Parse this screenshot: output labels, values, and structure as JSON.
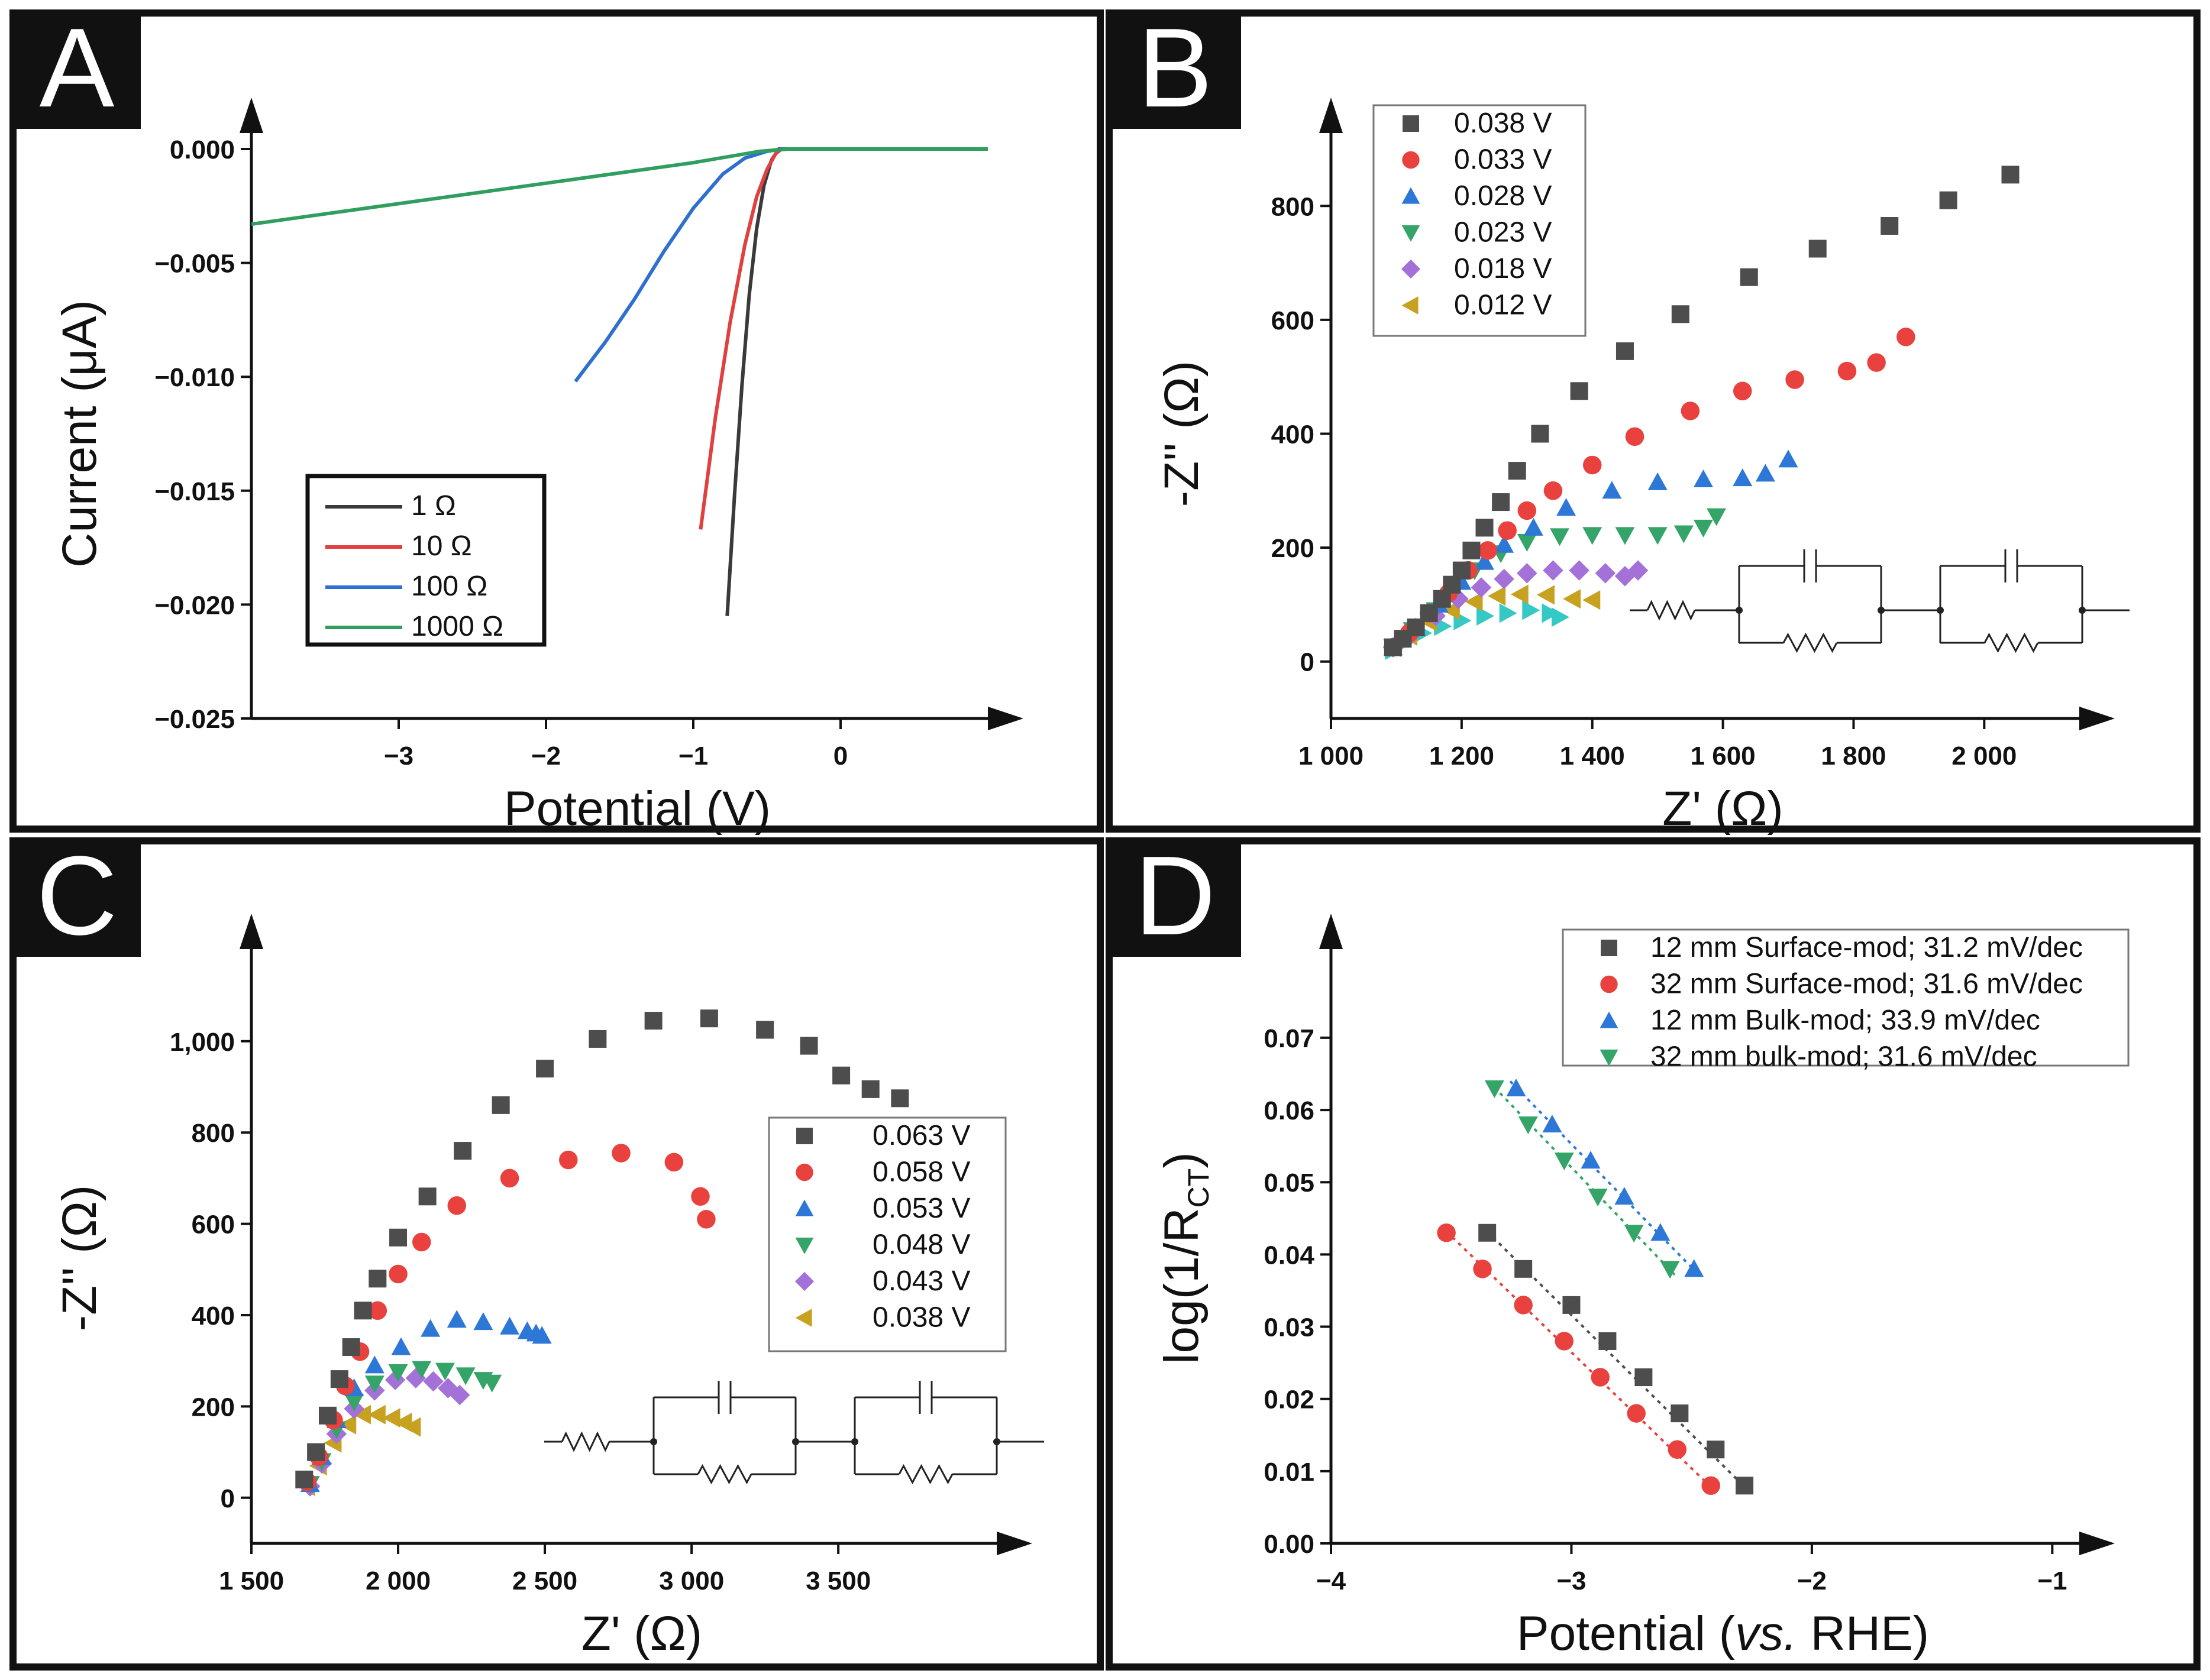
{
  "panels": {
    "A": {
      "letter": "A",
      "chart_data": {
        "type": "line",
        "title": "",
        "xlabel": "Potential (V)",
        "ylabel": "Current (μA)",
        "xlim": [
          -4.0,
          1.0
        ],
        "ylim": [
          -0.025,
          0.0
        ],
        "xticks": [
          -3,
          -2,
          -1,
          0
        ],
        "xtick_labels": [
          "−3",
          "−2",
          "−1",
          "0"
        ],
        "yticks": [
          0.0,
          -0.005,
          -0.01,
          -0.015,
          -0.02,
          -0.025
        ],
        "ytick_labels": [
          "0.000",
          "−0.005",
          "−0.010",
          "−0.015",
          "−0.020",
          "−0.025"
        ],
        "legend_position": "bottom-left",
        "series": [
          {
            "name": "1 Ω",
            "color": "#3a3a3a",
            "x": [
              -0.77,
              -0.72,
              -0.67,
              -0.62,
              -0.57,
              -0.52,
              -0.47,
              -0.42,
              0.0,
              1.0
            ],
            "y": [
              -0.0205,
              -0.0152,
              -0.0104,
              -0.0064,
              -0.0035,
              -0.0016,
              -0.0005,
              0.0,
              0.0,
              0.0
            ]
          },
          {
            "name": "10 Ω",
            "color": "#e0403f",
            "x": [
              -0.95,
              -0.85,
              -0.75,
              -0.65,
              -0.57,
              -0.5,
              -0.44,
              -0.4,
              0.0,
              1.0
            ],
            "y": [
              -0.0167,
              -0.0118,
              -0.0076,
              -0.0042,
              -0.0021,
              -0.0009,
              -0.0002,
              0.0,
              0.0,
              0.0
            ]
          },
          {
            "name": "100 Ω",
            "color": "#2f6fd0",
            "x": [
              -1.8,
              -1.6,
              -1.4,
              -1.2,
              -1.0,
              -0.8,
              -0.65,
              -0.5,
              -0.4,
              0.0,
              1.0
            ],
            "y": [
              -0.0102,
              -0.0085,
              -0.0066,
              -0.0045,
              -0.0026,
              -0.0011,
              -0.0004,
              -0.0001,
              0.0,
              0.0,
              0.0
            ]
          },
          {
            "name": "1000 Ω",
            "color": "#2f9e5e",
            "x": [
              -4.0,
              -3.0,
              -2.0,
              -1.0,
              -0.55,
              -0.35,
              0.0,
              1.0
            ],
            "y": [
              -0.0033,
              -0.0024,
              -0.0015,
              -0.0006,
              -0.0001,
              0.0,
              0.0,
              0.0
            ]
          }
        ]
      }
    },
    "B": {
      "letter": "B",
      "chart_data": {
        "type": "scatter",
        "title": "",
        "xlabel": "Z' (Ω)",
        "ylabel": "-Z'' (Ω)",
        "xlim": [
          1000,
          2150
        ],
        "ylim": [
          -100,
          900
        ],
        "xticks": [
          1000,
          1200,
          1400,
          1600,
          1800,
          2000
        ],
        "xtick_labels": [
          "1 000",
          "1 200",
          "1 400",
          "1 600",
          "1 800",
          "2 000"
        ],
        "yticks": [
          0,
          200,
          400,
          600,
          800
        ],
        "ytick_labels": [
          "0",
          "200",
          "400",
          "600",
          "800"
        ],
        "legend_position": "top-left",
        "series": [
          {
            "name": "0.038 V",
            "marker": "square",
            "color": "#4d4d4d",
            "x": [
              1095,
              1110,
              1130,
              1150,
              1170,
              1185,
              1200,
              1215,
              1235,
              1260,
              1285,
              1320,
              1380,
              1450,
              1535,
              1640,
              1745,
              1855,
              1945,
              2040
            ],
            "y": [
              25,
              40,
              60,
              85,
              110,
              135,
              160,
              195,
              235,
              280,
              335,
              400,
              475,
              545,
              610,
              675,
              725,
              765,
              810,
              855
            ]
          },
          {
            "name": "0.033 V",
            "marker": "circle",
            "color": "#e8413e",
            "x": [
              1095,
              1120,
              1150,
              1180,
              1210,
              1240,
              1270,
              1300,
              1340,
              1400,
              1465,
              1550,
              1630,
              1710,
              1790,
              1835,
              1880
            ],
            "y": [
              25,
              50,
              85,
              120,
              160,
              195,
              230,
              265,
              300,
              345,
              395,
              440,
              475,
              495,
              510,
              525,
              570
            ]
          },
          {
            "name": "0.028 V",
            "marker": "triangle-up",
            "color": "#2d78d6",
            "x": [
              1095,
              1130,
              1165,
              1200,
              1235,
              1265,
              1310,
              1360,
              1430,
              1500,
              1570,
              1630,
              1665,
              1700
            ],
            "y": [
              25,
              60,
              100,
              140,
              175,
              205,
              235,
              270,
              300,
              315,
              320,
              322,
              330,
              355
            ]
          },
          {
            "name": "0.023 V",
            "marker": "triangle-down",
            "color": "#35a468",
            "x": [
              1095,
              1125,
              1160,
              1190,
              1220,
              1260,
              1300,
              1350,
              1400,
              1450,
              1500,
              1540,
              1570,
              1590
            ],
            "y": [
              25,
              55,
              90,
              125,
              160,
              190,
              210,
              220,
              222,
              222,
              222,
              225,
              235,
              255
            ]
          },
          {
            "name": "0.018 V",
            "marker": "diamond",
            "color": "#a471d8",
            "x": [
              1095,
              1125,
              1160,
              1195,
              1230,
              1265,
              1300,
              1340,
              1380,
              1420,
              1450,
              1470
            ],
            "y": [
              25,
              50,
              80,
              110,
              130,
              145,
              155,
              160,
              160,
              155,
              150,
              160
            ]
          },
          {
            "name": "0.012 V",
            "marker": "triangle-left",
            "color": "#c7a120",
            "x": [
              1095,
              1120,
              1150,
              1185,
              1220,
              1255,
              1290,
              1330,
              1370,
              1400
            ],
            "y": [
              25,
              45,
              70,
              90,
              105,
              115,
              118,
              117,
              110,
              108
            ]
          },
          {
            "name": "",
            "marker": "triangle-right",
            "color": "#35c9c6",
            "x": [
              1095,
              1115,
              1140,
              1170,
              1200,
              1235,
              1270,
              1305,
              1335,
              1350
            ],
            "y": [
              20,
              35,
              50,
              62,
              72,
              80,
              85,
              90,
              85,
              78
            ]
          }
        ]
      }
    },
    "C": {
      "letter": "C",
      "chart_data": {
        "type": "scatter",
        "title": "",
        "xlabel": "Z' (Ω)",
        "ylabel": "-Z'' (Ω)",
        "xlim": [
          1500,
          4050
        ],
        "ylim": [
          -100,
          1150
        ],
        "xticks": [
          1500,
          2000,
          2500,
          3000,
          3500
        ],
        "xtick_labels": [
          "1 500",
          "2 000",
          "2 500",
          "3 000",
          "3 500"
        ],
        "yticks": [
          0,
          200,
          400,
          600,
          800,
          1000
        ],
        "ytick_labels": [
          "0",
          "200",
          "400",
          "600",
          "800",
          "1,000"
        ],
        "legend_position": "middle-right",
        "series": [
          {
            "name": "0.063 V",
            "marker": "square",
            "color": "#4d4d4d",
            "x": [
              1680,
              1720,
              1760,
              1800,
              1840,
              1880,
              1930,
              2000,
              2100,
              2220,
              2350,
              2500,
              2680,
              2870,
              3060,
              3250,
              3400,
              3510,
              3610,
              3710
            ],
            "y": [
              40,
              100,
              180,
              260,
              330,
              410,
              480,
              570,
              660,
              760,
              860,
              940,
              1005,
              1045,
              1050,
              1025,
              990,
              925,
              895,
              875
            ]
          },
          {
            "name": "0.058 V",
            "marker": "circle",
            "color": "#e8413e",
            "x": [
              1690,
              1730,
              1780,
              1820,
              1870,
              1930,
              2000,
              2080,
              2200,
              2380,
              2580,
              2760,
              2940,
              3030,
              3050
            ],
            "y": [
              35,
              90,
              170,
              245,
              320,
              410,
              490,
              560,
              640,
              700,
              740,
              755,
              735,
              660,
              610
            ]
          },
          {
            "name": "0.053 V",
            "marker": "triangle-up",
            "color": "#2d78d6",
            "x": [
              1700,
              1740,
              1790,
              1850,
              1920,
              2010,
              2110,
              2200,
              2290,
              2380,
              2440,
              2470,
              2490
            ],
            "y": [
              30,
              90,
              170,
              240,
              290,
              330,
              370,
              390,
              385,
              375,
              365,
              360,
              355
            ]
          },
          {
            "name": "0.048 V",
            "marker": "triangle-down",
            "color": "#35a468",
            "x": [
              1700,
              1740,
              1790,
              1850,
              1920,
              2000,
              2080,
              2160,
              2230,
              2290,
              2320
            ],
            "y": [
              30,
              80,
              150,
              210,
              250,
              275,
              282,
              278,
              268,
              258,
              252
            ]
          },
          {
            "name": "0.043 V",
            "marker": "diamond",
            "color": "#a471d8",
            "x": [
              1700,
              1740,
              1790,
              1850,
              1920,
              1990,
              2060,
              2120,
              2170,
              2210
            ],
            "y": [
              25,
              75,
              140,
              195,
              235,
              258,
              262,
              255,
              240,
              225
            ]
          },
          {
            "name": "0.038 V",
            "marker": "triangle-left",
            "color": "#c7a120",
            "x": [
              1690,
              1730,
              1780,
              1830,
              1880,
              1930,
              1980,
              2020,
              2050
            ],
            "y": [
              25,
              70,
              120,
              160,
              182,
              182,
              175,
              165,
              155
            ]
          }
        ]
      }
    },
    "D": {
      "letter": "D",
      "chart_data": {
        "type": "scatter",
        "title": "",
        "xlabel_parts": [
          "Potential (",
          "vs.",
          " RHE)"
        ],
        "ylabel_parts": [
          "log(1/R",
          "CT",
          ")"
        ],
        "xlim": [
          -4.0,
          -0.9
        ],
        "ylim": [
          0.0,
          0.079
        ],
        "xticks": [
          -4,
          -3,
          -2,
          -1
        ],
        "xtick_labels": [
          "−4",
          "−3",
          "−2",
          "−1"
        ],
        "yticks": [
          0.0,
          0.01,
          0.02,
          0.03,
          0.04,
          0.05,
          0.06,
          0.07
        ],
        "ytick_labels": [
          "0.00",
          "0.01",
          "0.02",
          "0.03",
          "0.04",
          "0.05",
          "0.06",
          "0.07"
        ],
        "legend_position": "top-right",
        "series": [
          {
            "name": "12 mm Surface-mod; 31.2 mV/dec",
            "marker": "square",
            "color": "#4d4d4d",
            "x": [
              -3.35,
              -3.2,
              -3.0,
              -2.85,
              -2.7,
              -2.55,
              -2.4,
              -2.28
            ],
            "y": [
              0.043,
              0.038,
              0.033,
              0.028,
              0.023,
              0.018,
              0.013,
              0.008
            ]
          },
          {
            "name": "32 mm Surface-mod; 31.6 mV/dec",
            "marker": "circle",
            "color": "#e8413e",
            "x": [
              -3.52,
              -3.37,
              -3.2,
              -3.03,
              -2.88,
              -2.73,
              -2.56,
              -2.42
            ],
            "y": [
              0.043,
              0.038,
              0.033,
              0.028,
              0.023,
              0.018,
              0.013,
              0.008
            ]
          },
          {
            "name": "12 mm Bulk-mod; 33.9 mV/dec",
            "marker": "triangle-up",
            "color": "#2d78d6",
            "x": [
              -3.23,
              -3.08,
              -2.92,
              -2.78,
              -2.63,
              -2.49
            ],
            "y": [
              0.063,
              0.058,
              0.053,
              0.048,
              0.043,
              0.038
            ]
          },
          {
            "name": "32 mm bulk-mod; 31.6 mV/dec",
            "marker": "triangle-down",
            "color": "#35a468",
            "x": [
              -3.32,
              -3.18,
              -3.03,
              -2.89,
              -2.74,
              -2.59
            ],
            "y": [
              0.063,
              0.058,
              0.053,
              0.048,
              0.043,
              0.038
            ]
          }
        ]
      }
    }
  }
}
